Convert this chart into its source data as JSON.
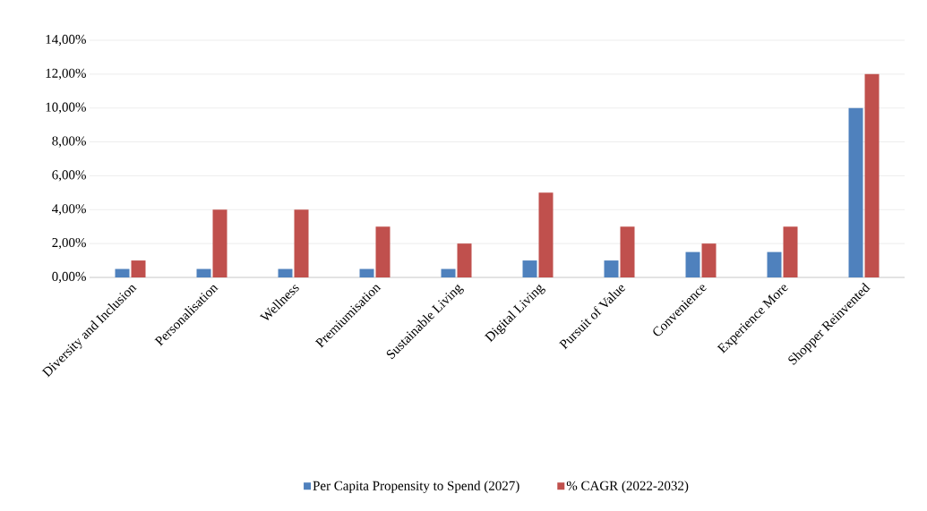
{
  "chart_data": {
    "type": "bar",
    "categories": [
      "Diversity and Inclusion",
      "Personalisation",
      "Wellness",
      "Premiumisation",
      "Sustainable Living",
      "Digital Living",
      "Pursuit of Value",
      "Convenience",
      "Experience More",
      "Shopper Reinvented"
    ],
    "series": [
      {
        "name": "Per Capita Propensity to Spend (2027)",
        "color": "#4f81bd",
        "values": [
          0.5,
          0.5,
          0.5,
          0.5,
          0.5,
          1,
          1,
          1.5,
          1.5,
          10
        ]
      },
      {
        "name": "% CAGR (2022-2032)",
        "color": "#c0504d",
        "values": [
          1,
          4,
          4,
          3,
          2,
          5,
          3,
          2,
          3,
          12
        ]
      }
    ],
    "ylim": [
      0,
      14
    ],
    "yticks": [
      {
        "value": 0,
        "label": "0,00%"
      },
      {
        "value": 2,
        "label": "2,00%"
      },
      {
        "value": 4,
        "label": "4,00%"
      },
      {
        "value": 6,
        "label": "6,00%"
      },
      {
        "value": 8,
        "label": "8,00%"
      },
      {
        "value": 10,
        "label": "10,00%"
      },
      {
        "value": 12,
        "label": "12,00%"
      },
      {
        "value": 14,
        "label": "14,00%"
      }
    ],
    "grid": "y",
    "legend": "bottom"
  }
}
